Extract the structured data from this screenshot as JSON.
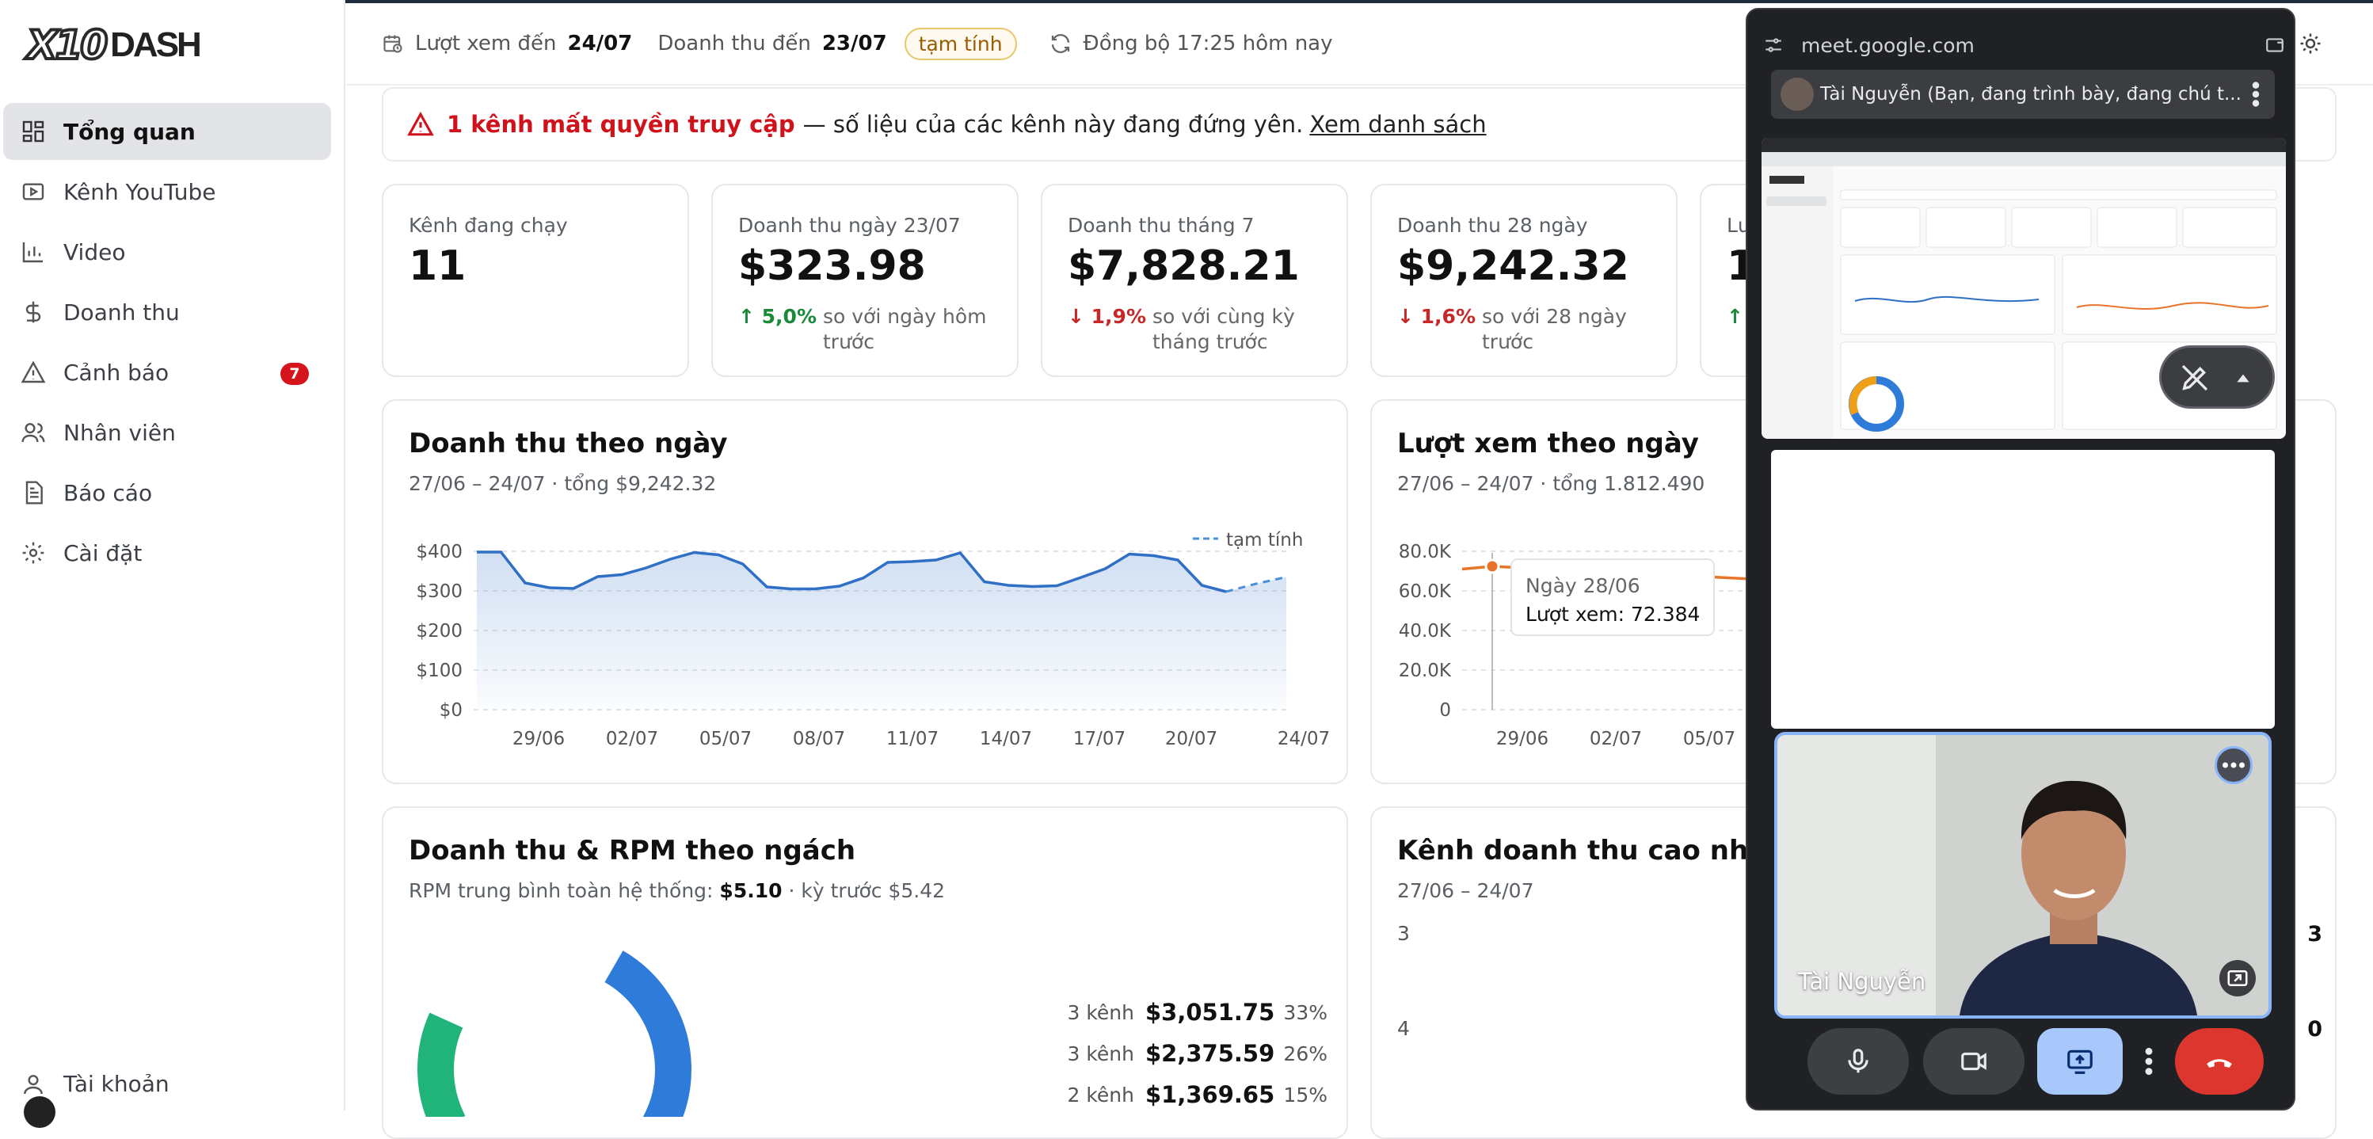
{
  "brand": {
    "logo_a": "X10",
    "logo_b": "DASH"
  },
  "sidebar": {
    "items": [
      {
        "label": "Tổng quan",
        "icon": "dashboard-icon",
        "active": true
      },
      {
        "label": "Kênh YouTube",
        "icon": "youtube-icon"
      },
      {
        "label": "Video",
        "icon": "bar-chart-icon"
      },
      {
        "label": "Doanh thu",
        "icon": "dollar-icon"
      },
      {
        "label": "Cảnh báo",
        "icon": "warning-icon",
        "badge": "7"
      },
      {
        "label": "Nhân viên",
        "icon": "users-icon"
      },
      {
        "label": "Báo cáo",
        "icon": "report-icon"
      },
      {
        "label": "Cài đặt",
        "icon": "gear-icon"
      }
    ],
    "account_label": "Tài khoản"
  },
  "header": {
    "views_label": "Lượt xem đến",
    "views_date": "24/07",
    "revenue_label": "Doanh thu đến",
    "revenue_date": "23/07",
    "provisional": "tạm tính",
    "sync": "Đồng bộ 17:25 hôm nay"
  },
  "alert": {
    "strong": "1 kênh mất quyền truy cập",
    "text": "— số liệu của các kênh này đang đứng yên.",
    "link": "Xem danh sách"
  },
  "stats": [
    {
      "label": "Kênh đang chạy",
      "value": "11"
    },
    {
      "label": "Doanh thu ngày 23/07",
      "value": "$323.98",
      "delta": "↑ 5,0%",
      "compare": "so với ngày hôm trước"
    },
    {
      "label": "Doanh thu tháng 7",
      "value": "$7,828.21",
      "delta": "↓ 1,9%",
      "compare": "so với cùng kỳ tháng trước"
    },
    {
      "label": "Doanh thu 28 ngày",
      "value": "$9,242.32",
      "delta": "↓ 1,6%",
      "compare": "so với 28 ngày trước"
    },
    {
      "label": "Lư",
      "value": "1.",
      "delta": "↑"
    }
  ],
  "revenue_chart": {
    "title": "Doanh thu theo ngày",
    "subtitle": "27/06 – 24/07 · tổng $9,242.32",
    "legend": "tạm tính"
  },
  "views_chart": {
    "title": "Lượt xem theo ngày",
    "subtitle": "27/06 – 24/07 · tổng 1.812.490",
    "tooltip_title": "Ngày 28/06",
    "tooltip_value": "Lượt xem: 72.384"
  },
  "niche": {
    "title": "Doanh thu & RPM theo ngách",
    "subtitle_prefix": "RPM trung bình toàn hệ thống:",
    "rpm": "$5.10",
    "subtitle_suffix": "· kỳ trước $5.42",
    "rows": [
      {
        "channels": "3 kênh",
        "amount": "$3,051.75",
        "pct": "33%"
      },
      {
        "channels": "3 kênh",
        "amount": "$2,375.59",
        "pct": "26%"
      },
      {
        "channels": "2 kênh",
        "amount": "$1,369.65",
        "pct": "15%"
      }
    ]
  },
  "top_channels": {
    "title": "Kênh doanh thu cao nhất",
    "subtitle": "27/06 – 24/07",
    "ranks": [
      "3",
      "4"
    ],
    "right_values": [
      "3",
      "0"
    ]
  },
  "meet": {
    "url": "meet.google.com",
    "presenter": "Tài Nguyễn (Bạn, đang trình bày, đang chú t...",
    "participant_name": "Tài Nguyễn"
  },
  "chart_data": [
    {
      "type": "area",
      "title": "Doanh thu theo ngày",
      "x_ticks": [
        "29/06",
        "02/07",
        "05/07",
        "08/07",
        "11/07",
        "14/07",
        "17/07",
        "20/07",
        "24/07"
      ],
      "y_ticks": [
        "$400",
        "$300",
        "$200",
        "$100",
        "$0"
      ],
      "ylim": [
        0,
        400
      ],
      "values": [
        398,
        398,
        320,
        308,
        306,
        336,
        341,
        358,
        380,
        397,
        391,
        368,
        310,
        305,
        305,
        312,
        333,
        372,
        374,
        378,
        396,
        323,
        314,
        311,
        313,
        334,
        356,
        393,
        389,
        378,
        314,
        298
      ],
      "provisional_values": [
        298,
        318,
        335
      ],
      "series": [
        {
          "name": "tạm tính"
        }
      ]
    },
    {
      "type": "line",
      "title": "Lượt xem theo ngày",
      "x_ticks": [
        "29/06",
        "02/07",
        "05/07"
      ],
      "y_ticks": [
        "80.0K",
        "60.0K",
        "40.0K",
        "20.0K",
        "0"
      ],
      "ylim": [
        0,
        80000
      ],
      "values": [
        71000,
        72384,
        66000
      ]
    },
    {
      "type": "pie",
      "title": "Doanh thu & RPM theo ngách",
      "values": [
        33,
        26,
        15
      ],
      "colors": [
        "#2f7bd9",
        "#f0a016",
        "#20b47a"
      ]
    }
  ]
}
